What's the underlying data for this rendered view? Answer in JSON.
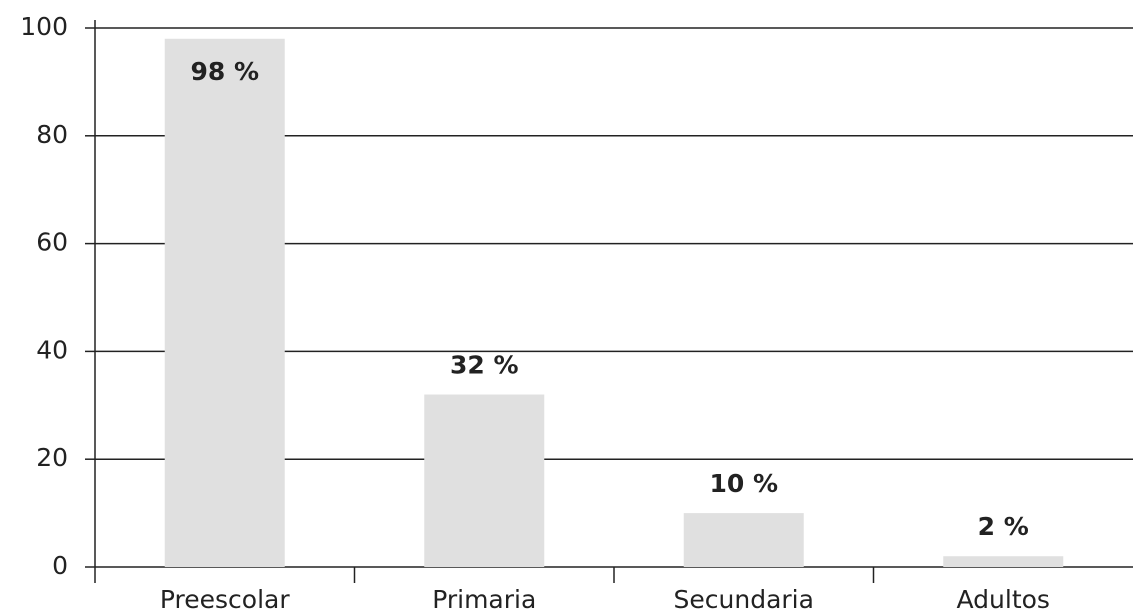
{
  "chart_data": {
    "type": "bar",
    "categories": [
      "Preescolar",
      "Primaria",
      "Secundaria",
      "Adultos"
    ],
    "values": [
      98,
      32,
      10,
      2
    ],
    "value_labels": [
      "98 %",
      "32 %",
      "10 %",
      "2 %"
    ],
    "color": "#e0e0e0",
    "ylim": [
      0,
      100
    ],
    "yticks": [
      0,
      20,
      40,
      60,
      80,
      100
    ],
    "grid": true
  }
}
